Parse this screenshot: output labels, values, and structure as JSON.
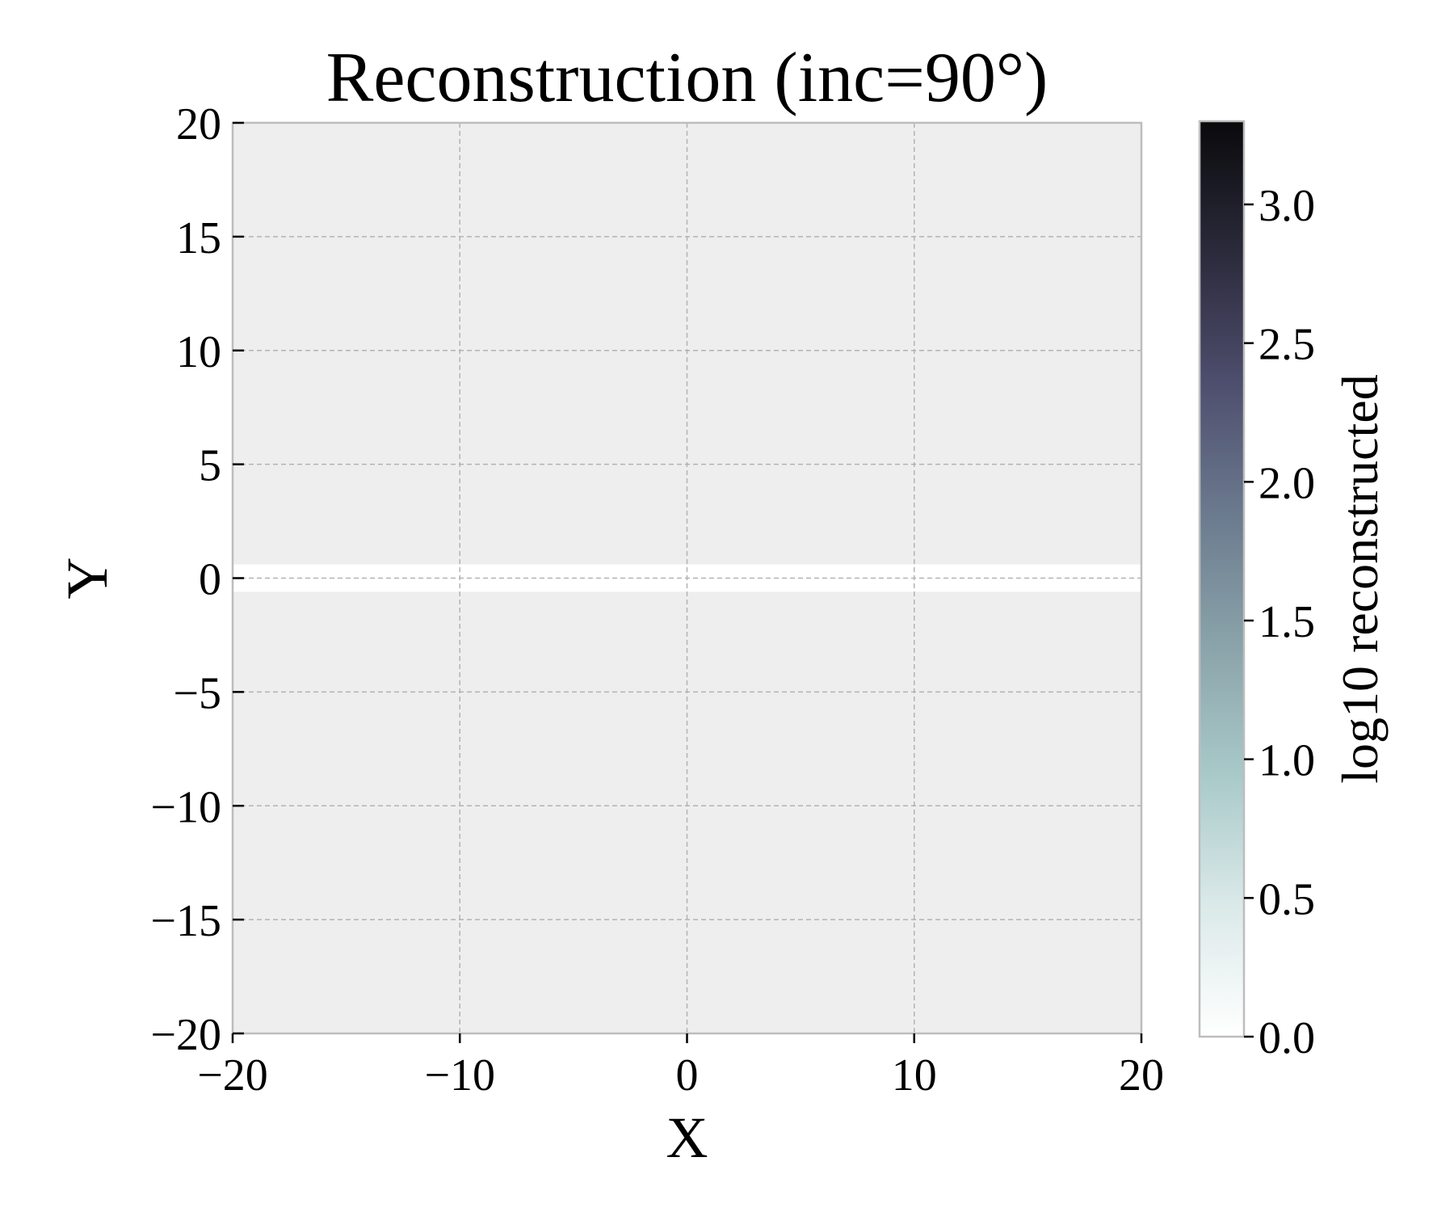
{
  "chart_data": {
    "type": "heatmap",
    "title": "Reconstruction (inc=90°)",
    "xlabel": "X",
    "ylabel": "Y",
    "xlim": [
      -20,
      20
    ],
    "ylim": [
      -20,
      20
    ],
    "xticks": [
      -20,
      -10,
      0,
      10,
      20
    ],
    "yticks": [
      -20,
      -15,
      -10,
      -5,
      0,
      5,
      10,
      15,
      20
    ],
    "xtick_labels": [
      "−20",
      "−10",
      "0",
      "10",
      "20"
    ],
    "ytick_labels": [
      "−20",
      "−15",
      "−10",
      "−5",
      "0",
      "5",
      "10",
      "15",
      "20"
    ],
    "grid": true,
    "background_color": "#eeeeee",
    "band": {
      "y_range": [
        -0.6,
        0.6
      ],
      "color": "#ffffff",
      "description_value": 0.0
    },
    "colorbar": {
      "label": "log10 reconstructed",
      "range": [
        0.0,
        3.3
      ],
      "ticks": [
        0.0,
        0.5,
        1.0,
        1.5,
        2.0,
        2.5,
        3.0
      ],
      "tick_labels": [
        "0.0",
        "0.5",
        "1.0",
        "1.5",
        "2.0",
        "2.5",
        "3.0"
      ],
      "colormap": [
        "#ffffff",
        "#dbe9e9",
        "#a9c9c9",
        "#8aa3aa",
        "#6b7a8e",
        "#4e4e6e",
        "#2b2a3b",
        "#0a0a0c"
      ]
    }
  }
}
